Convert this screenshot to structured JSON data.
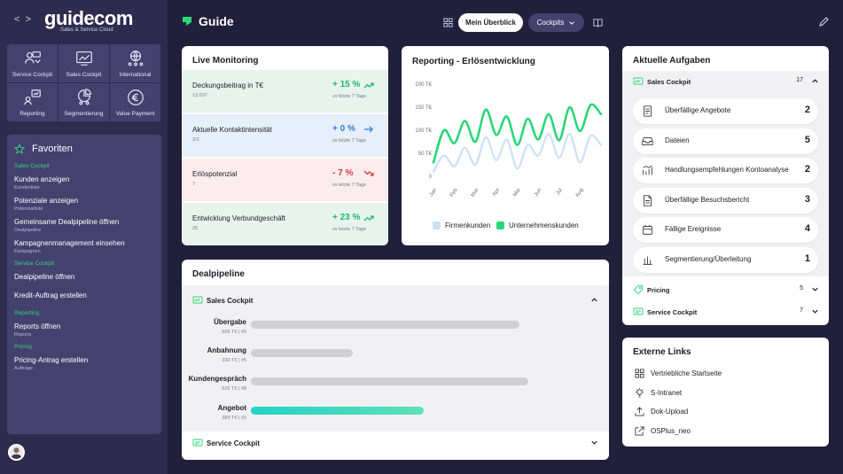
{
  "brand": {
    "name": "guidecom",
    "tagline": "Sales & Service Cloud"
  },
  "colors": {
    "accent": "#2bd67b",
    "sidebar": "#2e2b4f",
    "tile": "#45416f",
    "background": "#211f3a",
    "light_series": "#cfe2f5",
    "teal_bar": "#22d3c5"
  },
  "nav": {
    "back_icon": "chevron-left-icon",
    "forward_icon": "chevron-right-icon",
    "tiles": [
      {
        "label": "Service Cockpit",
        "icon": "service-cockpit-icon"
      },
      {
        "label": "Sales Cockpit",
        "icon": "sales-cockpit-icon"
      },
      {
        "label": "International",
        "icon": "globe-people-icon"
      },
      {
        "label": "Reporting",
        "icon": "reporting-people-icon"
      },
      {
        "label": "Segmentierung",
        "icon": "pie-segment-icon"
      },
      {
        "label": "Value Payment",
        "icon": "euro-coin-icon"
      }
    ]
  },
  "favorites": {
    "title": "Favoriten",
    "groups": [
      {
        "label": "Sales Cockpit",
        "items": [
          {
            "title": "Kunden anzeigen",
            "sub": "Kundenliste"
          },
          {
            "title": "Potenziale anzeigen",
            "sub": "Potenzialliste"
          },
          {
            "title": "Gemeinsame Dealpipeline öffnen",
            "sub": "Dealpipeline"
          },
          {
            "title": "Kampagnenmanagement einsehen",
            "sub": "Kampagnen"
          }
        ]
      },
      {
        "label": "Service Cockpit",
        "items": [
          {
            "title": "Dealpipeline öffnen",
            "sub": ""
          },
          {
            "title": "Kredit-Auftrag erstellen",
            "sub": ""
          }
        ]
      },
      {
        "label": "Reporting",
        "items": [
          {
            "title": "Reports öffnen",
            "sub": "Reports"
          }
        ]
      },
      {
        "label": "Pricing",
        "items": [
          {
            "title": "Pricing-Antrag erstellen",
            "sub": "Aufträge"
          }
        ]
      }
    ]
  },
  "header": {
    "title": "Guide",
    "overview_button": "Mein Überblick",
    "cockpits_button": "Cockpits"
  },
  "live_monitoring": {
    "title": "Live Monitoring",
    "rows": [
      {
        "label": "Deckungsbeitrag in T€",
        "sub": "13.037",
        "value": "+ 15 %",
        "compare": "vs letzte 7 Tage",
        "trend": "up",
        "color": "#1fb866",
        "bg": "#e7f4ee"
      },
      {
        "label": "Aktuelle Kontaktintensität",
        "sub": "2/3",
        "value": "+ 0 %",
        "compare": "vs letzte 7 Tage",
        "trend": "flat",
        "color": "#2f7fd8",
        "bg": "#e6effa"
      },
      {
        "label": "Erlöspotenzial",
        "sub": "7",
        "value": "- 7 %",
        "compare": "vs letzte 7 Tage",
        "trend": "down",
        "color": "#d93b3b",
        "bg": "#fbeced"
      },
      {
        "label": "Entwicklung Verbundgeschäft",
        "sub": "26",
        "value": "+ 23 %",
        "compare": "vs letzte 7 Tage",
        "trend": "up",
        "color": "#1fb866",
        "bg": "#e7f4ee"
      }
    ]
  },
  "chart_data": {
    "type": "line",
    "title": "Reporting - Erlösentwicklung",
    "categories": [
      "Jan",
      "Feb",
      "Mar",
      "Apr",
      "Mai",
      "Jun",
      "Jul",
      "Aug"
    ],
    "x": [
      0,
      0.5,
      1,
      1.5,
      2,
      2.5,
      3,
      3.5,
      4,
      4.5,
      5,
      5.5,
      6,
      6.5,
      7,
      7.5,
      8
    ],
    "series": [
      {
        "name": "Firmenkunden",
        "color": "#cfe2f5",
        "values": [
          10,
          45,
          22,
          62,
          25,
          85,
          35,
          80,
          17,
          68,
          45,
          92,
          40,
          92,
          30,
          88,
          68
        ]
      },
      {
        "name": "Unternehmenskunden",
        "color": "#2bd67b",
        "values": [
          30,
          100,
          72,
          120,
          75,
          145,
          90,
          130,
          68,
          125,
          80,
          135,
          78,
          150,
          98,
          155,
          135
        ]
      }
    ],
    "ylim": [
      0,
      200
    ],
    "yticks": [
      "0",
      "50 T€",
      "100 T€",
      "150 T€",
      "200 T€"
    ],
    "grid": false,
    "legend": "bottom"
  },
  "dealpipeline": {
    "title": "Dealpipeline",
    "section": "Sales Cockpit",
    "stages": [
      {
        "name": "Übergabe",
        "meta": "606 T€ | #6",
        "value": 606,
        "color": "#cfcfd4"
      },
      {
        "name": "Anbahnung",
        "meta": "230 T€ | #5",
        "value": 230,
        "color": "#cfcfd4"
      },
      {
        "name": "Kundengespräch",
        "meta": "625 T€ | #8",
        "value": 625,
        "color": "#cfcfd4"
      },
      {
        "name": "Angebot",
        "meta": "389 T€ | #2",
        "value": 389,
        "color": "#22d3c5"
      }
    ],
    "max_value": 800,
    "footer_section": "Service Cockpit"
  },
  "tasks": {
    "title": "Aktuelle Aufgaben",
    "sections": [
      {
        "label": "Sales Cockpit",
        "count": "17"
      },
      {
        "label": "Pricing",
        "count": "5"
      },
      {
        "label": "Service Cockpit",
        "count": "7"
      }
    ],
    "items": [
      {
        "label": "Überfällige Angebote",
        "count": "2",
        "icon": "document-icon"
      },
      {
        "label": "Dateien",
        "count": "5",
        "icon": "inbox-icon"
      },
      {
        "label": "Handlungsempfehlungen Kontoanalyse",
        "count": "2",
        "icon": "chart-arrow-icon"
      },
      {
        "label": "Überfällige Besuchsbericht",
        "count": "3",
        "icon": "report-doc-icon"
      },
      {
        "label": "Fällige Ereignisse",
        "count": "4",
        "icon": "calendar-icon"
      },
      {
        "label": "Segmentierung/Überleitung",
        "count": "1",
        "icon": "bar-chart-icon"
      }
    ]
  },
  "links": {
    "title": "Externe Links",
    "items": [
      {
        "label": "Vertriebliche Startseite",
        "icon": "grid-icon"
      },
      {
        "label": "S-Intranet",
        "icon": "lightbulb-icon"
      },
      {
        "label": "Dok-Upload",
        "icon": "upload-icon"
      },
      {
        "label": "OSPlus_neo",
        "icon": "external-link-icon"
      }
    ]
  }
}
